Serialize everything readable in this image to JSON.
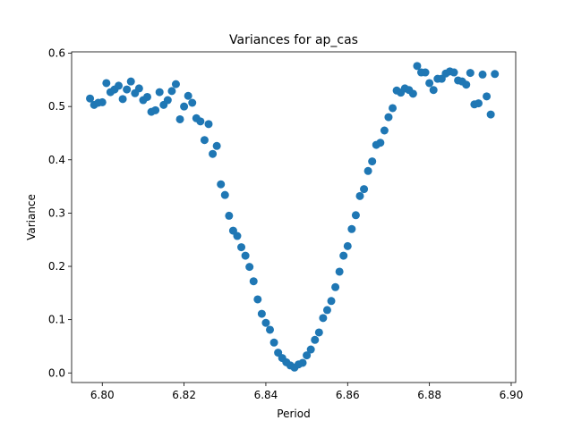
{
  "chart_data": {
    "type": "scatter",
    "title": "Variances for ap_cas",
    "xlabel": "Period",
    "ylabel": "Variance",
    "xlim": [
      6.7925,
      6.9011
    ],
    "ylim": [
      -0.018,
      0.6026
    ],
    "xticks": [
      "6.80",
      "6.82",
      "6.84",
      "6.86",
      "6.88",
      "6.90"
    ],
    "xtick_values": [
      6.8,
      6.82,
      6.84,
      6.86,
      6.88,
      6.9
    ],
    "yticks": [
      "0.0",
      "0.1",
      "0.2",
      "0.3",
      "0.4",
      "0.5",
      "0.6"
    ],
    "ytick_values": [
      0.0,
      0.1,
      0.2,
      0.3,
      0.4,
      0.5,
      0.6
    ],
    "grid": false,
    "marker_color": "#1f77b4",
    "points": [
      [
        6.797,
        0.515
      ],
      [
        6.798,
        0.503
      ],
      [
        6.799,
        0.507
      ],
      [
        6.8,
        0.508
      ],
      [
        6.801,
        0.544
      ],
      [
        6.802,
        0.527
      ],
      [
        6.803,
        0.532
      ],
      [
        6.804,
        0.539
      ],
      [
        6.805,
        0.514
      ],
      [
        6.806,
        0.532
      ],
      [
        6.807,
        0.547
      ],
      [
        6.808,
        0.525
      ],
      [
        6.809,
        0.534
      ],
      [
        6.81,
        0.512
      ],
      [
        6.811,
        0.518
      ],
      [
        6.812,
        0.49
      ],
      [
        6.813,
        0.493
      ],
      [
        6.814,
        0.527
      ],
      [
        6.815,
        0.503
      ],
      [
        6.816,
        0.512
      ],
      [
        6.817,
        0.529
      ],
      [
        6.818,
        0.542
      ],
      [
        6.819,
        0.476
      ],
      [
        6.82,
        0.5
      ],
      [
        6.821,
        0.52
      ],
      [
        6.822,
        0.507
      ],
      [
        6.823,
        0.478
      ],
      [
        6.824,
        0.472
      ],
      [
        6.825,
        0.437
      ],
      [
        6.826,
        0.467
      ],
      [
        6.827,
        0.411
      ],
      [
        6.828,
        0.426
      ],
      [
        6.829,
        0.354
      ],
      [
        6.83,
        0.334
      ],
      [
        6.831,
        0.295
      ],
      [
        6.832,
        0.267
      ],
      [
        6.833,
        0.257
      ],
      [
        6.834,
        0.236
      ],
      [
        6.835,
        0.22
      ],
      [
        6.836,
        0.199
      ],
      [
        6.837,
        0.172
      ],
      [
        6.838,
        0.138
      ],
      [
        6.839,
        0.111
      ],
      [
        6.84,
        0.094
      ],
      [
        6.841,
        0.081
      ],
      [
        6.842,
        0.057
      ],
      [
        6.843,
        0.038
      ],
      [
        6.844,
        0.028
      ],
      [
        6.845,
        0.02
      ],
      [
        6.846,
        0.014
      ],
      [
        6.847,
        0.01
      ],
      [
        6.848,
        0.016
      ],
      [
        6.849,
        0.019
      ],
      [
        6.85,
        0.033
      ],
      [
        6.851,
        0.044
      ],
      [
        6.852,
        0.062
      ],
      [
        6.853,
        0.076
      ],
      [
        6.854,
        0.103
      ],
      [
        6.855,
        0.118
      ],
      [
        6.856,
        0.135
      ],
      [
        6.857,
        0.161
      ],
      [
        6.858,
        0.19
      ],
      [
        6.859,
        0.22
      ],
      [
        6.86,
        0.238
      ],
      [
        6.861,
        0.27
      ],
      [
        6.862,
        0.296
      ],
      [
        6.863,
        0.332
      ],
      [
        6.864,
        0.345
      ],
      [
        6.865,
        0.379
      ],
      [
        6.866,
        0.397
      ],
      [
        6.867,
        0.428
      ],
      [
        6.868,
        0.432
      ],
      [
        6.869,
        0.455
      ],
      [
        6.87,
        0.48
      ],
      [
        6.871,
        0.497
      ],
      [
        6.872,
        0.53
      ],
      [
        6.873,
        0.526
      ],
      [
        6.874,
        0.534
      ],
      [
        6.875,
        0.531
      ],
      [
        6.876,
        0.524
      ],
      [
        6.877,
        0.576
      ],
      [
        6.878,
        0.564
      ],
      [
        6.879,
        0.564
      ],
      [
        6.88,
        0.544
      ],
      [
        6.881,
        0.531
      ],
      [
        6.882,
        0.552
      ],
      [
        6.883,
        0.552
      ],
      [
        6.884,
        0.562
      ],
      [
        6.885,
        0.566
      ],
      [
        6.886,
        0.564
      ],
      [
        6.887,
        0.549
      ],
      [
        6.888,
        0.547
      ],
      [
        6.889,
        0.541
      ],
      [
        6.89,
        0.563
      ],
      [
        6.891,
        0.504
      ],
      [
        6.892,
        0.506
      ],
      [
        6.893,
        0.56
      ],
      [
        6.894,
        0.519
      ],
      [
        6.895,
        0.485
      ],
      [
        6.896,
        0.561
      ]
    ]
  }
}
